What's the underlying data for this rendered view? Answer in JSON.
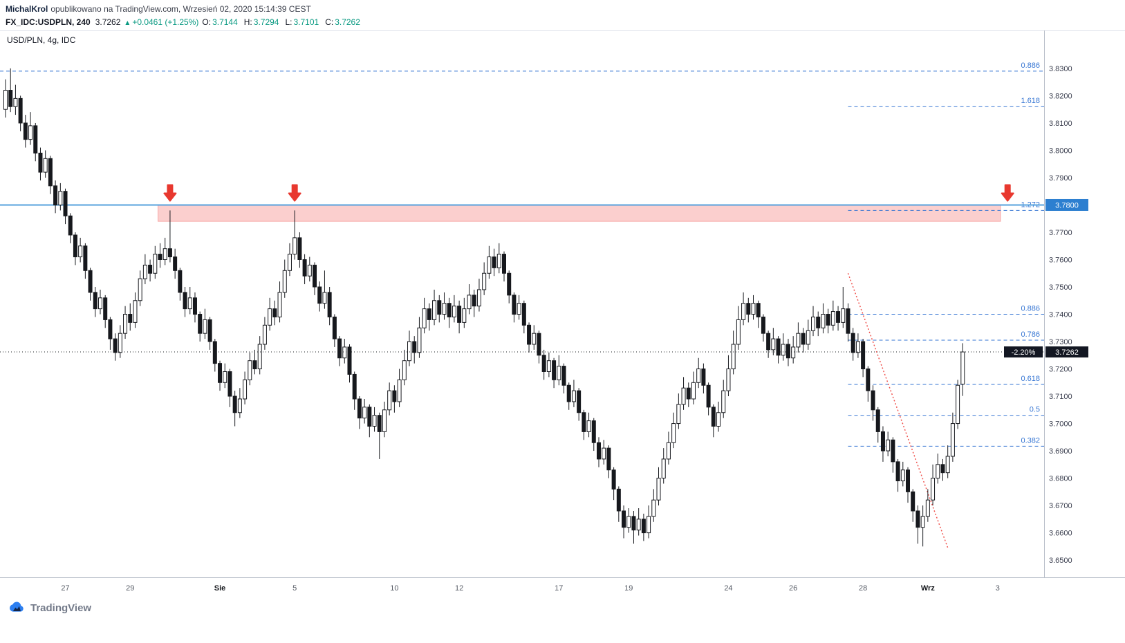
{
  "header": {
    "author": "MichalKrol",
    "published_text": "opublikowano na TradingView.com, Wrzesień 02, 2020 15:14:39 CEST",
    "quote": {
      "symbol": "FX_IDC:USDPLN, 240",
      "last": "3.7262",
      "arrow": "▲",
      "change": "+0.0461 (+1.25%)",
      "ohlc": [
        {
          "label": "O:",
          "value": "3.7144"
        },
        {
          "label": "H:",
          "value": "3.7294"
        },
        {
          "label": "L:",
          "value": "3.7101"
        },
        {
          "label": "C:",
          "value": "3.7262"
        }
      ]
    }
  },
  "footer": {
    "brand": "TradingView"
  },
  "chart_data": {
    "type": "candlestick",
    "title": "USD/PLN, 4g, IDC",
    "symbol": "USD/PLN",
    "interval": "4g",
    "exchange": "IDC",
    "colors": {
      "up_candle": "#ffffff",
      "down_candle": "#16181d",
      "candle_border": "#16181d",
      "level_line": "#54a0dd",
      "level_tag": "#2d7fd0",
      "zone_fill": "rgba(239,83,80,0.28)",
      "zone_border": "rgba(239,83,80,0.42)",
      "arrow": "#e8382f",
      "fib": "#3575d3",
      "trend": "#f0544f",
      "last_price_bg": "#131722",
      "positive": "#089981",
      "axis_text": "#3c4050",
      "border": "#b9bfca"
    },
    "price_axis": {
      "max": 3.8439,
      "min": 3.6437,
      "ticks": [
        "3.8300",
        "3.8200",
        "3.8100",
        "3.8000",
        "3.7900",
        "3.7800",
        "3.7700",
        "3.7600",
        "3.7500",
        "3.7400",
        "3.7300",
        "3.7200",
        "3.7100",
        "3.7000",
        "3.6900",
        "3.6800",
        "3.6700",
        "3.6600",
        "3.6500"
      ]
    },
    "time_ticks": [
      {
        "label": "27",
        "index": 12
      },
      {
        "label": "29",
        "index": 25
      },
      {
        "label": "Sie",
        "index": 43,
        "emphasis": true
      },
      {
        "label": "5",
        "index": 58
      },
      {
        "label": "10",
        "index": 78
      },
      {
        "label": "12",
        "index": 91
      },
      {
        "label": "17",
        "index": 111
      },
      {
        "label": "19",
        "index": 125
      },
      {
        "label": "24",
        "index": 145
      },
      {
        "label": "26",
        "index": 158
      },
      {
        "label": "28",
        "index": 172
      },
      {
        "label": "Wrz",
        "index": 185,
        "emphasis": true
      },
      {
        "label": "3",
        "index": 199
      }
    ],
    "overlays": {
      "resistance_line": {
        "price": 3.78,
        "axis_label": "3.7800"
      },
      "zone": {
        "price_top": 3.78,
        "price_bottom": 3.774,
        "start_index": 31,
        "end_index": 200
      },
      "arrow_tip_price": 3.7815,
      "arrows": [
        {
          "index": 33
        },
        {
          "index": 58
        },
        {
          "index": 201
        }
      ],
      "fib_levels": [
        {
          "label": "0.886",
          "price": 3.829,
          "full_width": true
        },
        {
          "label": "1.618",
          "price": 3.816,
          "start_index": 169
        },
        {
          "label": "1.272",
          "price": 3.778,
          "start_index": 169
        },
        {
          "label": "0.886",
          "price": 3.74,
          "start_index": 169
        },
        {
          "label": "0.786",
          "price": 3.7305,
          "start_index": 169
        },
        {
          "label": "0.618",
          "price": 3.7143,
          "start_index": 169
        },
        {
          "label": "0.5",
          "price": 3.703,
          "start_index": 169
        },
        {
          "label": "0.382",
          "price": 3.6917,
          "start_index": 169
        }
      ],
      "trendline": {
        "start": {
          "index": 169,
          "price": 3.755
        },
        "end": {
          "index": 189,
          "price": 3.6545
        }
      },
      "last_price": {
        "value": "3.7262",
        "change_label": "-2.20%"
      }
    },
    "candles_format": [
      "open",
      "high",
      "low",
      "close"
    ],
    "candles": [
      [
        3.815,
        3.826,
        3.812,
        3.822
      ],
      [
        3.822,
        3.83,
        3.814,
        3.816
      ],
      [
        3.816,
        3.824,
        3.813,
        3.819
      ],
      [
        3.819,
        3.82,
        3.807,
        3.81
      ],
      [
        3.81,
        3.813,
        3.801,
        3.804
      ],
      [
        3.804,
        3.814,
        3.802,
        3.809
      ],
      [
        3.809,
        3.81,
        3.796,
        3.799
      ],
      [
        3.799,
        3.801,
        3.789,
        3.792
      ],
      [
        3.792,
        3.8,
        3.79,
        3.797
      ],
      [
        3.797,
        3.798,
        3.784,
        3.787
      ],
      [
        3.787,
        3.789,
        3.777,
        3.78
      ],
      [
        3.78,
        3.788,
        3.778,
        3.785
      ],
      [
        3.785,
        3.786,
        3.773,
        3.776
      ],
      [
        3.776,
        3.777,
        3.766,
        3.769
      ],
      [
        3.769,
        3.77,
        3.758,
        3.761
      ],
      [
        3.761,
        3.768,
        3.759,
        3.765
      ],
      [
        3.765,
        3.766,
        3.753,
        3.756
      ],
      [
        3.756,
        3.757,
        3.745,
        3.748
      ],
      [
        3.748,
        3.75,
        3.739,
        3.742
      ],
      [
        3.742,
        3.749,
        3.74,
        3.746
      ],
      [
        3.746,
        3.747,
        3.735,
        3.738
      ],
      [
        3.738,
        3.739,
        3.727,
        3.731
      ],
      [
        3.731,
        3.733,
        3.723,
        3.726
      ],
      [
        3.726,
        3.736,
        3.724,
        3.733
      ],
      [
        3.733,
        3.743,
        3.731,
        3.74
      ],
      [
        3.74,
        3.744,
        3.734,
        3.737
      ],
      [
        3.737,
        3.748,
        3.735,
        3.745
      ],
      [
        3.745,
        3.756,
        3.743,
        3.753
      ],
      [
        3.753,
        3.762,
        3.751,
        3.758
      ],
      [
        3.758,
        3.76,
        3.752,
        3.755
      ],
      [
        3.755,
        3.765,
        3.753,
        3.762
      ],
      [
        3.762,
        3.766,
        3.757,
        3.76
      ],
      [
        3.76,
        3.768,
        3.758,
        3.764
      ],
      [
        3.764,
        3.778,
        3.759,
        3.761
      ],
      [
        3.761,
        3.764,
        3.753,
        3.756
      ],
      [
        3.756,
        3.757,
        3.745,
        3.748
      ],
      [
        3.748,
        3.75,
        3.739,
        3.742
      ],
      [
        3.742,
        3.75,
        3.74,
        3.746
      ],
      [
        3.746,
        3.748,
        3.737,
        3.74
      ],
      [
        3.74,
        3.741,
        3.73,
        3.733
      ],
      [
        3.733,
        3.742,
        3.731,
        3.738
      ],
      [
        3.738,
        3.739,
        3.727,
        3.73
      ],
      [
        3.73,
        3.731,
        3.719,
        3.722
      ],
      [
        3.722,
        3.723,
        3.712,
        3.715
      ],
      [
        3.715,
        3.722,
        3.713,
        3.719
      ],
      [
        3.719,
        3.72,
        3.706,
        3.71
      ],
      [
        3.71,
        3.712,
        3.699,
        3.704
      ],
      [
        3.704,
        3.713,
        3.702,
        3.709
      ],
      [
        3.709,
        3.719,
        3.707,
        3.716
      ],
      [
        3.716,
        3.726,
        3.714,
        3.723
      ],
      [
        3.723,
        3.727,
        3.718,
        3.72
      ],
      [
        3.72,
        3.732,
        3.718,
        3.729
      ],
      [
        3.729,
        3.739,
        3.727,
        3.736
      ],
      [
        3.736,
        3.746,
        3.734,
        3.742
      ],
      [
        3.742,
        3.745,
        3.736,
        3.739
      ],
      [
        3.739,
        3.752,
        3.737,
        3.748
      ],
      [
        3.748,
        3.76,
        3.746,
        3.756
      ],
      [
        3.756,
        3.766,
        3.754,
        3.762
      ],
      [
        3.762,
        3.778,
        3.76,
        3.768
      ],
      [
        3.768,
        3.77,
        3.757,
        3.76
      ],
      [
        3.76,
        3.762,
        3.751,
        3.754
      ],
      [
        3.754,
        3.761,
        3.752,
        3.758
      ],
      [
        3.758,
        3.759,
        3.747,
        3.75
      ],
      [
        3.75,
        3.752,
        3.741,
        3.744
      ],
      [
        3.744,
        3.756,
        3.742,
        3.748
      ],
      [
        3.748,
        3.75,
        3.736,
        3.739
      ],
      [
        3.739,
        3.74,
        3.728,
        3.731
      ],
      [
        3.731,
        3.732,
        3.721,
        3.724
      ],
      [
        3.724,
        3.731,
        3.722,
        3.728
      ],
      [
        3.728,
        3.729,
        3.715,
        3.718
      ],
      [
        3.718,
        3.719,
        3.705,
        3.709
      ],
      [
        3.709,
        3.71,
        3.698,
        3.702
      ],
      [
        3.702,
        3.709,
        3.7,
        3.706
      ],
      [
        3.706,
        3.707,
        3.695,
        3.699
      ],
      [
        3.699,
        3.706,
        3.697,
        3.703
      ],
      [
        3.703,
        3.704,
        3.687,
        3.697
      ],
      [
        3.697,
        3.708,
        3.695,
        3.705
      ],
      [
        3.705,
        3.715,
        3.703,
        3.712
      ],
      [
        3.712,
        3.714,
        3.704,
        3.708
      ],
      [
        3.708,
        3.72,
        3.706,
        3.716
      ],
      [
        3.716,
        3.727,
        3.714,
        3.723
      ],
      [
        3.723,
        3.734,
        3.721,
        3.73
      ],
      [
        3.73,
        3.732,
        3.722,
        3.726
      ],
      [
        3.726,
        3.739,
        3.724,
        3.735
      ],
      [
        3.735,
        3.746,
        3.733,
        3.742
      ],
      [
        3.742,
        3.744,
        3.734,
        3.738
      ],
      [
        3.738,
        3.749,
        3.736,
        3.745
      ],
      [
        3.745,
        3.747,
        3.737,
        3.74
      ],
      [
        3.74,
        3.748,
        3.738,
        3.744
      ],
      [
        3.744,
        3.746,
        3.735,
        3.739
      ],
      [
        3.739,
        3.747,
        3.737,
        3.743
      ],
      [
        3.743,
        3.745,
        3.733,
        3.737
      ],
      [
        3.737,
        3.746,
        3.735,
        3.742
      ],
      [
        3.742,
        3.751,
        3.74,
        3.747
      ],
      [
        3.747,
        3.749,
        3.739,
        3.743
      ],
      [
        3.743,
        3.753,
        3.741,
        3.749
      ],
      [
        3.749,
        3.759,
        3.747,
        3.755
      ],
      [
        3.755,
        3.765,
        3.753,
        3.761
      ],
      [
        3.761,
        3.764,
        3.754,
        3.757
      ],
      [
        3.757,
        3.766,
        3.755,
        3.762
      ],
      [
        3.762,
        3.763,
        3.752,
        3.755
      ],
      [
        3.755,
        3.756,
        3.744,
        3.747
      ],
      [
        3.747,
        3.748,
        3.737,
        3.74
      ],
      [
        3.74,
        3.747,
        3.738,
        3.744
      ],
      [
        3.744,
        3.745,
        3.733,
        3.736
      ],
      [
        3.736,
        3.737,
        3.726,
        3.729
      ],
      [
        3.729,
        3.736,
        3.727,
        3.733
      ],
      [
        3.733,
        3.734,
        3.722,
        3.725
      ],
      [
        3.725,
        3.727,
        3.716,
        3.719
      ],
      [
        3.719,
        3.726,
        3.717,
        3.723
      ],
      [
        3.723,
        3.724,
        3.713,
        3.716
      ],
      [
        3.716,
        3.725,
        3.714,
        3.721
      ],
      [
        3.721,
        3.722,
        3.711,
        3.714
      ],
      [
        3.714,
        3.715,
        3.705,
        3.708
      ],
      [
        3.708,
        3.716,
        3.706,
        3.712
      ],
      [
        3.712,
        3.713,
        3.701,
        3.704
      ],
      [
        3.704,
        3.705,
        3.694,
        3.697
      ],
      [
        3.697,
        3.704,
        3.695,
        3.701
      ],
      [
        3.701,
        3.702,
        3.69,
        3.693
      ],
      [
        3.693,
        3.695,
        3.684,
        3.687
      ],
      [
        3.687,
        3.694,
        3.685,
        3.691
      ],
      [
        3.691,
        3.692,
        3.68,
        3.683
      ],
      [
        3.683,
        3.684,
        3.672,
        3.676
      ],
      [
        3.676,
        3.677,
        3.664,
        3.668
      ],
      [
        3.668,
        3.67,
        3.658,
        3.662
      ],
      [
        3.662,
        3.669,
        3.66,
        3.666
      ],
      [
        3.666,
        3.668,
        3.656,
        3.661
      ],
      [
        3.661,
        3.669,
        3.659,
        3.665
      ],
      [
        3.665,
        3.667,
        3.657,
        3.66
      ],
      [
        3.66,
        3.67,
        3.658,
        3.666
      ],
      [
        3.666,
        3.676,
        3.664,
        3.672
      ],
      [
        3.672,
        3.684,
        3.67,
        3.68
      ],
      [
        3.68,
        3.691,
        3.678,
        3.687
      ],
      [
        3.687,
        3.697,
        3.685,
        3.693
      ],
      [
        3.693,
        3.704,
        3.691,
        3.7
      ],
      [
        3.7,
        3.711,
        3.698,
        3.707
      ],
      [
        3.707,
        3.717,
        3.705,
        3.713
      ],
      [
        3.713,
        3.715,
        3.706,
        3.709
      ],
      [
        3.709,
        3.719,
        3.707,
        3.715
      ],
      [
        3.715,
        3.724,
        3.713,
        3.72
      ],
      [
        3.72,
        3.722,
        3.711,
        3.714
      ],
      [
        3.714,
        3.715,
        3.703,
        3.706
      ],
      [
        3.706,
        3.707,
        3.695,
        3.699
      ],
      [
        3.699,
        3.708,
        3.697,
        3.704
      ],
      [
        3.704,
        3.716,
        3.702,
        3.712
      ],
      [
        3.712,
        3.725,
        3.71,
        3.72
      ],
      [
        3.72,
        3.734,
        3.718,
        3.729
      ],
      [
        3.729,
        3.743,
        3.727,
        3.738
      ],
      [
        3.738,
        3.748,
        3.736,
        3.744
      ],
      [
        3.744,
        3.746,
        3.737,
        3.74
      ],
      [
        3.74,
        3.747,
        3.738,
        3.744
      ],
      [
        3.744,
        3.745,
        3.735,
        3.739
      ],
      [
        3.739,
        3.74,
        3.73,
        3.733
      ],
      [
        3.733,
        3.734,
        3.724,
        3.727
      ],
      [
        3.727,
        3.735,
        3.725,
        3.731
      ],
      [
        3.731,
        3.732,
        3.722,
        3.725
      ],
      [
        3.725,
        3.733,
        3.723,
        3.729
      ],
      [
        3.729,
        3.731,
        3.721,
        3.724
      ],
      [
        3.724,
        3.732,
        3.722,
        3.728
      ],
      [
        3.728,
        3.737,
        3.726,
        3.733
      ],
      [
        3.733,
        3.735,
        3.726,
        3.729
      ],
      [
        3.729,
        3.738,
        3.727,
        3.734
      ],
      [
        3.734,
        3.743,
        3.732,
        3.739
      ],
      [
        3.739,
        3.741,
        3.732,
        3.735
      ],
      [
        3.735,
        3.744,
        3.733,
        3.74
      ],
      [
        3.74,
        3.742,
        3.733,
        3.736
      ],
      [
        3.736,
        3.745,
        3.734,
        3.741
      ],
      [
        3.741,
        3.743,
        3.734,
        3.737
      ],
      [
        3.737,
        3.75,
        3.735,
        3.742
      ],
      [
        3.742,
        3.744,
        3.73,
        3.733
      ],
      [
        3.733,
        3.735,
        3.723,
        3.726
      ],
      [
        3.726,
        3.733,
        3.724,
        3.73
      ],
      [
        3.73,
        3.731,
        3.717,
        3.72
      ],
      [
        3.72,
        3.721,
        3.708,
        3.712
      ],
      [
        3.712,
        3.714,
        3.701,
        3.705
      ],
      [
        3.705,
        3.706,
        3.693,
        3.697
      ],
      [
        3.697,
        3.699,
        3.686,
        3.69
      ],
      [
        3.69,
        3.697,
        3.688,
        3.694
      ],
      [
        3.694,
        3.695,
        3.682,
        3.686
      ],
      [
        3.686,
        3.687,
        3.675,
        3.679
      ],
      [
        3.679,
        3.686,
        3.677,
        3.683
      ],
      [
        3.683,
        3.684,
        3.671,
        3.675
      ],
      [
        3.675,
        3.676,
        3.664,
        3.668
      ],
      [
        3.668,
        3.67,
        3.656,
        3.662
      ],
      [
        3.662,
        3.67,
        3.655,
        3.666
      ],
      [
        3.666,
        3.676,
        3.664,
        3.672
      ],
      [
        3.672,
        3.685,
        3.67,
        3.68
      ],
      [
        3.68,
        3.689,
        3.678,
        3.685
      ],
      [
        3.685,
        3.687,
        3.679,
        3.682
      ],
      [
        3.682,
        3.692,
        3.68,
        3.688
      ],
      [
        3.688,
        3.704,
        3.686,
        3.7
      ],
      [
        3.7,
        3.716,
        3.698,
        3.714
      ],
      [
        3.7144,
        3.7294,
        3.7101,
        3.7262
      ]
    ]
  }
}
